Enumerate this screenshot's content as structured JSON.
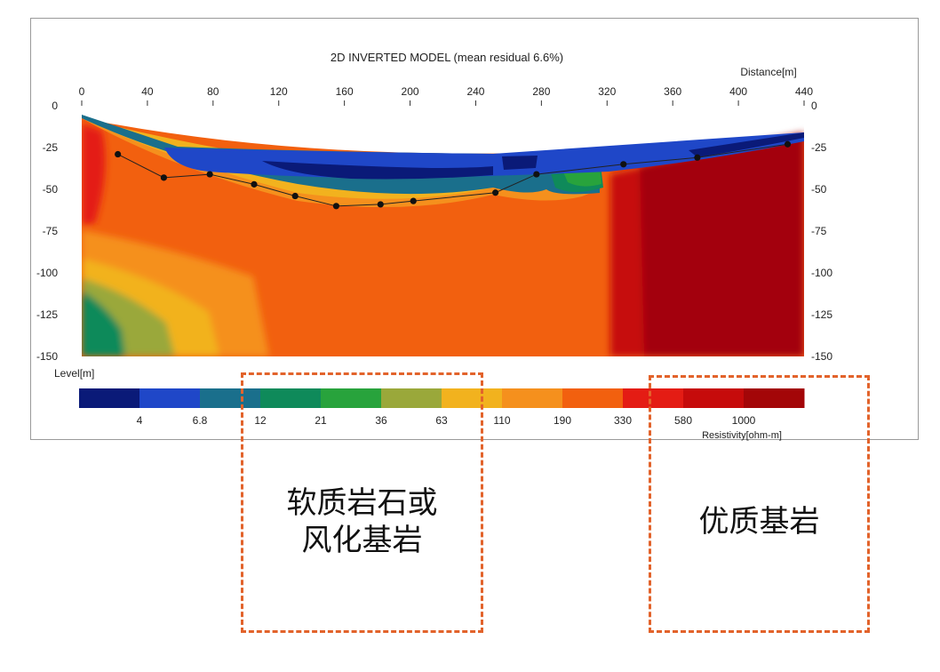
{
  "chart_data": {
    "type": "heatmap",
    "title": "2D INVERTED MODEL (mean residual 6.6%)",
    "xlabel": "Distance[m]",
    "ylabel": "Level[m]",
    "colorbar_label": "Resistivity[ohm-m]",
    "xlim": [
      0,
      440
    ],
    "ylim": [
      -150,
      0
    ],
    "x_ticks": [
      0,
      40,
      80,
      120,
      160,
      200,
      240,
      280,
      320,
      360,
      400,
      440
    ],
    "y_ticks": [
      0,
      -25,
      -50,
      -75,
      -100,
      -125,
      -150
    ],
    "color_scale": {
      "ticks": [
        "4",
        "6.8",
        "12",
        "21",
        "36",
        "63",
        "110",
        "190",
        "330",
        "580",
        "1000"
      ],
      "colors": [
        "#0a1a78",
        "#1f47c8",
        "#1a6f8c",
        "#0f8a5a",
        "#28a33c",
        "#9aa83a",
        "#f2b21e",
        "#f5901d",
        "#f2600f",
        "#e41c14",
        "#c60b0b",
        "#a30608"
      ]
    },
    "interface_points": {
      "x": [
        22,
        50,
        78,
        105,
        130,
        155,
        182,
        202,
        252,
        277,
        330,
        375,
        430
      ],
      "level": [
        -29,
        -43,
        -41,
        -47,
        -54,
        -60,
        -59,
        -57,
        -52,
        -41,
        -35,
        -31,
        -23
      ]
    }
  },
  "annotations": [
    {
      "line1": "软质岩石或",
      "line2": "风化基岩"
    },
    {
      "line1": "优质基岩"
    }
  ],
  "colors": {
    "annotation_border": "#e2632b"
  }
}
